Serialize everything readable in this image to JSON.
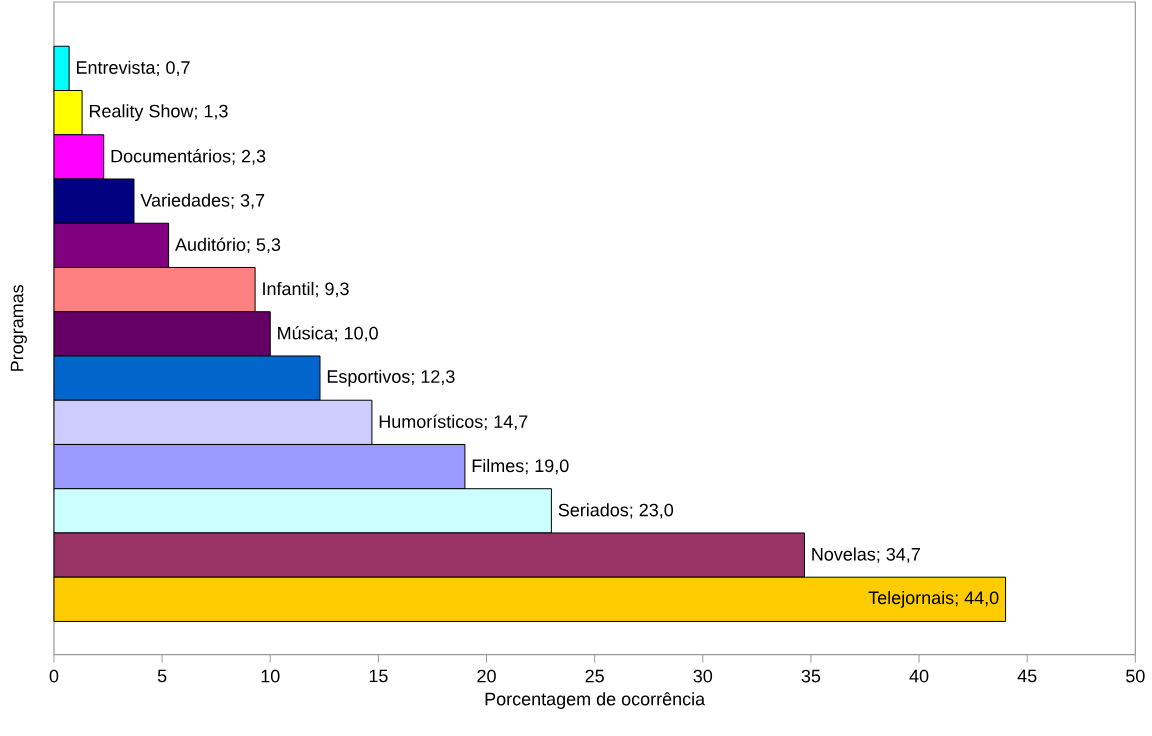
{
  "chart_data": {
    "type": "bar",
    "orientation": "horizontal",
    "xlabel": "Porcentagem de ocorrência",
    "ylabel": "Programas",
    "categories": [
      null,
      null,
      null,
      null,
      null,
      null,
      null,
      null,
      null,
      null,
      null,
      null,
      null
    ],
    "values": [
      0.7,
      1.3,
      2.3,
      3.7,
      5.3,
      9.3,
      10.0,
      12.3,
      14.7,
      19.0,
      23.0,
      34.7,
      44.0
    ],
    "value_labels": [
      "Entrevista; 0,7",
      "Reality Show; 1,3",
      "Documentários; 2,3",
      "Variedades; 3,7",
      "Auditório; 5,3",
      "Infantil; 9,3",
      "Música; 10,0",
      "Esportivos; 12,3",
      "Humorísticos; 14,7",
      "Filmes; 19,0",
      "Seriados; 23,0",
      "Novelas; 34,7",
      "Telejornais; 44,0"
    ],
    "colors": [
      "#00ffff",
      "#ffff00",
      "#ff00ff",
      "#000080",
      "#800080",
      "#ff8080",
      "#660066",
      "#0066cc",
      "#ccccff",
      "#9999ff",
      "#ccffff",
      "#993366",
      "#ffcc00"
    ],
    "xlim": [
      0,
      50
    ],
    "xticks": [
      0,
      5,
      10,
      15,
      20,
      25,
      30,
      35,
      40,
      45,
      50
    ],
    "tick_labels": "x"
  }
}
